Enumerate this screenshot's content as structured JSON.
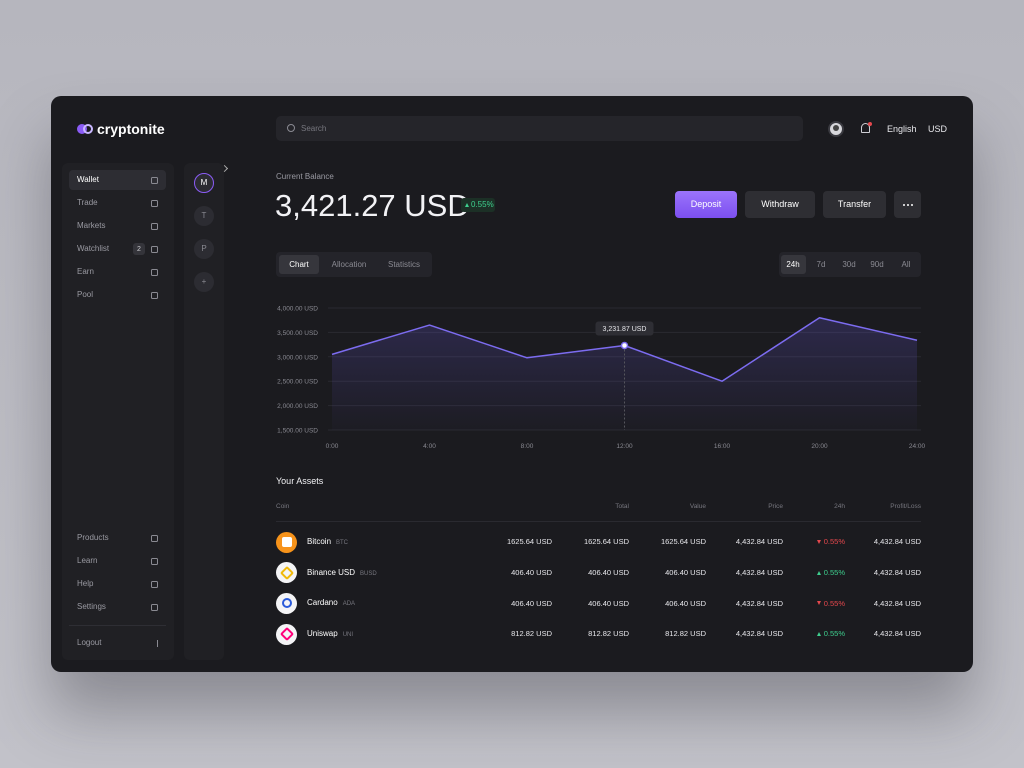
{
  "logo": "cryptonite",
  "search_placeholder": "Search",
  "header": {
    "language": "English",
    "currency": "USD"
  },
  "sidebar": {
    "items": [
      {
        "label": "Wallet",
        "active": true
      },
      {
        "label": "Trade"
      },
      {
        "label": "Markets"
      },
      {
        "label": "Watchlist",
        "badge": "2"
      },
      {
        "label": "Earn"
      },
      {
        "label": "Pool"
      }
    ],
    "bottom_items": [
      {
        "label": "Products"
      },
      {
        "label": "Learn"
      },
      {
        "label": "Help"
      },
      {
        "label": "Settings"
      }
    ],
    "logout": "Logout"
  },
  "accounts": [
    "M",
    "T",
    "P",
    "+"
  ],
  "balance": {
    "label": "Current Balance",
    "amount": "3,421.27 USD",
    "change": "0.55%"
  },
  "actions": [
    "Deposit",
    "Withdraw",
    "Transfer"
  ],
  "view_tabs": {
    "items": [
      "Chart",
      "Allocation",
      "Statistics"
    ],
    "active": 0
  },
  "range_tabs": {
    "items": [
      "24h",
      "7d",
      "30d",
      "90d",
      "All"
    ],
    "active": 0
  },
  "chart_data": {
    "type": "line",
    "x": [
      0,
      4,
      8,
      12,
      16,
      20,
      24
    ],
    "xlim": [
      0,
      24
    ],
    "xticks": [
      {
        "value": 0,
        "label": "0:00"
      },
      {
        "value": 4,
        "label": "4:00"
      },
      {
        "value": 8,
        "label": "8:00"
      },
      {
        "value": 12,
        "label": "12:00"
      },
      {
        "value": 16,
        "label": "16:00"
      },
      {
        "value": 20,
        "label": "20:00"
      },
      {
        "value": 24,
        "label": "24:00"
      }
    ],
    "values": [
      3050,
      3650,
      2980,
      3231.87,
      2500,
      3800,
      3340
    ],
    "value_labels": [
      null,
      null,
      null,
      "3,231.87 USD",
      null,
      null,
      null
    ],
    "color": "#7c6cf0",
    "ylim": [
      1500,
      4000
    ],
    "yticks": [
      {
        "value": 1500,
        "label": "1,500.00 USD"
      },
      {
        "value": 2000,
        "label": "2,000.00 USD"
      },
      {
        "value": 2500,
        "label": "2,500.00 USD"
      },
      {
        "value": 3000,
        "label": "3,000.00 USD"
      },
      {
        "value": 3500,
        "label": "3,500.00 USD"
      },
      {
        "value": 4000,
        "label": "4,000.00 USD"
      }
    ],
    "grid": true
  },
  "assets": {
    "title": "Your Assets",
    "columns": [
      "Coin",
      "Total",
      "Value",
      "Price",
      "24h",
      "Profit/Loss"
    ],
    "rows": [
      {
        "coin": "Bitcoin",
        "symbol": "BTC",
        "icon_color": "#f7931a",
        "amount": "1625.64 USD",
        "total": "1625.64 USD",
        "value": "1625.64 USD",
        "price": "4,432.84 USD",
        "change": "0.55%",
        "trend": "down",
        "profit": "4,432.84 USD"
      },
      {
        "coin": "Binance USD",
        "symbol": "BUSD",
        "icon_color": "#f0b90b",
        "amount": "406.40 USD",
        "total": "406.40 USD",
        "value": "406.40 USD",
        "price": "4,432.84 USD",
        "change": "0.55%",
        "trend": "up",
        "profit": "4,432.84 USD"
      },
      {
        "coin": "Cardano",
        "symbol": "ADA",
        "icon_color": "#2a5ada",
        "amount": "406.40 USD",
        "total": "406.40 USD",
        "value": "406.40 USD",
        "price": "4,432.84 USD",
        "change": "0.55%",
        "trend": "down",
        "profit": "4,432.84 USD"
      },
      {
        "coin": "Uniswap",
        "symbol": "UNI",
        "icon_color": "#ff007a",
        "amount": "812.82 USD",
        "total": "812.82 USD",
        "value": "812.82 USD",
        "price": "4,432.84 USD",
        "change": "0.55%",
        "trend": "up",
        "profit": "4,432.84 USD"
      }
    ]
  }
}
